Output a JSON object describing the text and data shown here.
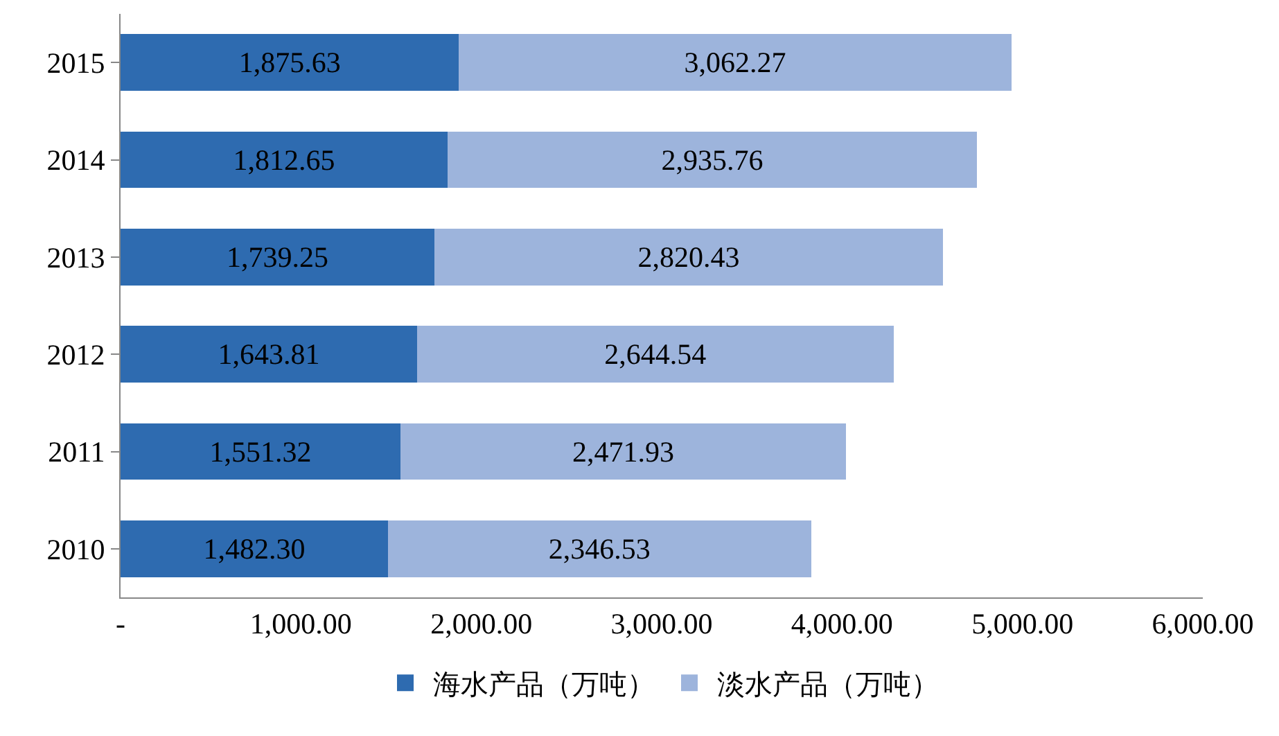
{
  "chart_data": {
    "type": "bar",
    "orientation": "horizontal",
    "stacked": true,
    "categories": [
      "2015",
      "2014",
      "2013",
      "2012",
      "2011",
      "2010"
    ],
    "series": [
      {
        "name": "海水产品（万吨）",
        "color": "#2e6bb0",
        "values": [
          1875.63,
          1812.65,
          1739.25,
          1643.81,
          1551.32,
          1482.3
        ],
        "value_labels": [
          "1,875.63",
          "1,812.65",
          "1,739.25",
          "1,643.81",
          "1,551.32",
          "1,482.30"
        ]
      },
      {
        "name": "淡水产品（万吨）",
        "color": "#9db4dc",
        "values": [
          3062.27,
          2935.76,
          2820.43,
          2644.54,
          2471.93,
          2346.53
        ],
        "value_labels": [
          "3,062.27",
          "2,935.76",
          "2,820.43",
          "2,644.54",
          "2,471.93",
          "2,346.53"
        ]
      }
    ],
    "xlim": [
      0,
      6000
    ],
    "xticks": [
      {
        "value": 0,
        "label": "-"
      },
      {
        "value": 1000,
        "label": "1,000.00"
      },
      {
        "value": 2000,
        "label": "2,000.00"
      },
      {
        "value": 3000,
        "label": "3,000.00"
      },
      {
        "value": 4000,
        "label": "4,000.00"
      },
      {
        "value": 5000,
        "label": "5,000.00"
      },
      {
        "value": 6000,
        "label": "6,000.00"
      }
    ],
    "legend": "bottom"
  }
}
